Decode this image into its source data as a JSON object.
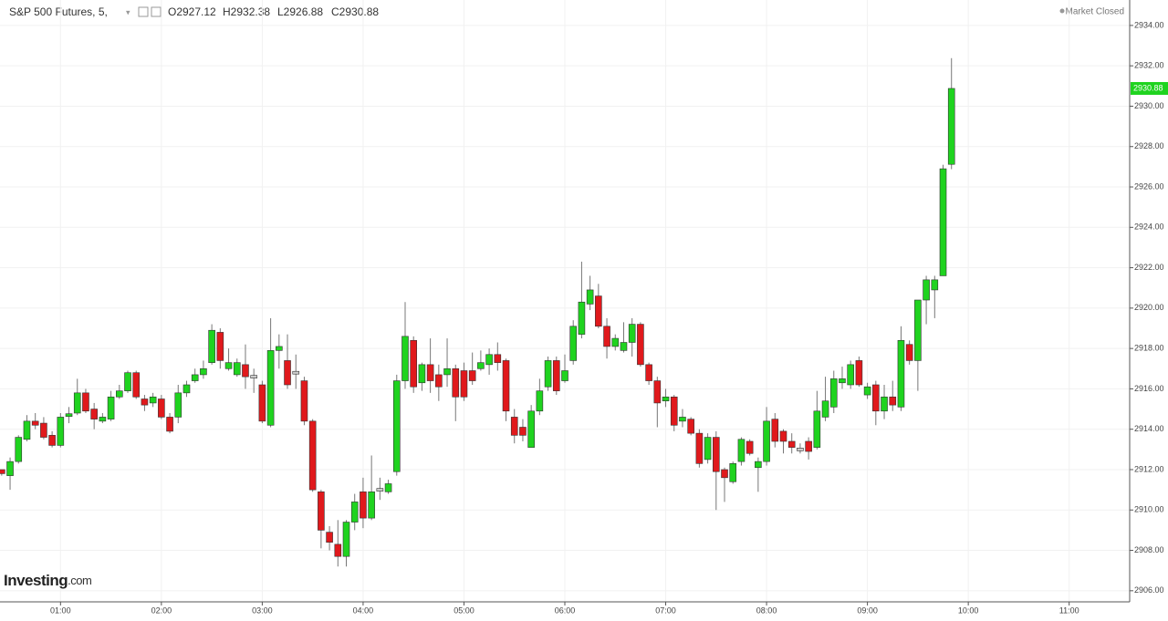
{
  "header": {
    "symbol": "S&P 500 Futures, 5,",
    "readout": [
      "O2927.12",
      "H2932.38",
      "L2926.88",
      "C2930.88"
    ],
    "status": "Market Closed",
    "brand": "Investing",
    "brand_suffix": ".com"
  },
  "chart_data": {
    "type": "candlestick",
    "up_color": "#1fd31f",
    "down_color": "#e0191c",
    "flat_color": "#cccccc",
    "grid": true,
    "xlim": [
      "00:24",
      "11:36"
    ],
    "ylim": [
      2905.45,
      2935.26
    ],
    "xticks": [
      "01:00",
      "02:00",
      "03:00",
      "04:00",
      "05:00",
      "06:00",
      "07:00",
      "08:00",
      "09:00",
      "10:00",
      "11:00"
    ],
    "yticks": [
      {
        "value": 2906,
        "label": "2906.00"
      },
      {
        "value": 2908,
        "label": "2908.00"
      },
      {
        "value": 2910,
        "label": "2910.00"
      },
      {
        "value": 2912,
        "label": "2912.00"
      },
      {
        "value": 2914,
        "label": "2914.00"
      },
      {
        "value": 2916,
        "label": "2916.00"
      },
      {
        "value": 2918,
        "label": "2918.00"
      },
      {
        "value": 2920,
        "label": "2920.00"
      },
      {
        "value": 2922,
        "label": "2922.00"
      },
      {
        "value": 2924,
        "label": "2924.00"
      },
      {
        "value": 2926,
        "label": "2926.00"
      },
      {
        "value": 2928,
        "label": "2928.00"
      },
      {
        "value": 2930,
        "label": "2930.00"
      },
      {
        "value": 2932,
        "label": "2932.00"
      },
      {
        "value": 2934,
        "label": "2934.00"
      }
    ],
    "last_price": 2930.88,
    "x": [
      "00:25",
      "00:30",
      "00:35",
      "00:40",
      "00:45",
      "00:50",
      "00:55",
      "01:00",
      "01:05",
      "01:10",
      "01:15",
      "01:20",
      "01:25",
      "01:30",
      "01:35",
      "01:40",
      "01:45",
      "01:50",
      "01:55",
      "02:00",
      "02:05",
      "02:10",
      "02:15",
      "02:20",
      "02:25",
      "02:30",
      "02:35",
      "02:40",
      "02:45",
      "02:50",
      "02:55",
      "03:00",
      "03:05",
      "03:10",
      "03:15",
      "03:20",
      "03:25",
      "03:30",
      "03:35",
      "03:40",
      "03:45",
      "03:50",
      "03:55",
      "04:00",
      "04:05",
      "04:10",
      "04:15",
      "04:20",
      "04:25",
      "04:30",
      "04:35",
      "04:40",
      "04:45",
      "04:50",
      "04:55",
      "05:00",
      "05:05",
      "05:10",
      "05:15",
      "05:20",
      "05:25",
      "05:30",
      "05:35",
      "05:40",
      "05:45",
      "05:50",
      "05:55",
      "06:00",
      "06:05",
      "06:10",
      "06:15",
      "06:20",
      "06:25",
      "06:30",
      "06:35",
      "06:40",
      "06:45",
      "06:50",
      "06:55",
      "07:00",
      "07:05",
      "07:10",
      "07:15",
      "07:20",
      "07:25",
      "07:30",
      "07:35",
      "07:40",
      "07:45",
      "07:50",
      "07:55",
      "08:00",
      "08:05",
      "08:10",
      "08:15",
      "08:20",
      "08:25",
      "08:30",
      "08:35",
      "08:40",
      "08:45",
      "08:50",
      "08:55",
      "09:00",
      "09:05",
      "09:10",
      "09:15",
      "09:20",
      "09:25",
      "09:30",
      "09:35",
      "09:40",
      "09:45",
      "09:50"
    ],
    "ohlc": [
      [
        2912.0,
        2912.0,
        2911.7,
        2911.8
      ],
      [
        2911.7,
        2912.6,
        2911.0,
        2912.4
      ],
      [
        2912.4,
        2913.7,
        2912.3,
        2913.6
      ],
      [
        2913.5,
        2914.7,
        2913.4,
        2914.4
      ],
      [
        2914.4,
        2914.8,
        2914.0,
        2914.2
      ],
      [
        2914.3,
        2914.6,
        2913.5,
        2913.6
      ],
      [
        2913.7,
        2913.9,
        2913.1,
        2913.2
      ],
      [
        2913.2,
        2914.8,
        2913.1,
        2914.6
      ],
      [
        2914.6,
        2915.1,
        2914.3,
        2914.7
      ],
      [
        2914.8,
        2916.5,
        2914.7,
        2915.8
      ],
      [
        2915.8,
        2916.0,
        2914.8,
        2914.9
      ],
      [
        2915.0,
        2915.3,
        2914.0,
        2914.5
      ],
      [
        2914.4,
        2914.8,
        2914.3,
        2914.6
      ],
      [
        2914.5,
        2915.9,
        2914.4,
        2915.6
      ],
      [
        2915.6,
        2916.2,
        2915.5,
        2915.9
      ],
      [
        2915.9,
        2916.9,
        2915.8,
        2916.8
      ],
      [
        2916.8,
        2916.9,
        2915.5,
        2915.6
      ],
      [
        2915.5,
        2915.7,
        2914.9,
        2915.2
      ],
      [
        2915.3,
        2915.8,
        2915.1,
        2915.6
      ],
      [
        2915.5,
        2915.7,
        2914.5,
        2914.6
      ],
      [
        2914.6,
        2914.8,
        2913.8,
        2913.9
      ],
      [
        2914.6,
        2916.2,
        2914.3,
        2915.8
      ],
      [
        2915.8,
        2916.4,
        2915.6,
        2916.2
      ],
      [
        2916.4,
        2917.0,
        2916.3,
        2916.7
      ],
      [
        2916.7,
        2917.4,
        2916.5,
        2917.0
      ],
      [
        2917.3,
        2919.2,
        2917.2,
        2918.9
      ],
      [
        2918.8,
        2919.0,
        2917.0,
        2917.4
      ],
      [
        2917.0,
        2918.0,
        2916.9,
        2917.3
      ],
      [
        2916.7,
        2917.5,
        2916.6,
        2917.3
      ],
      [
        2917.2,
        2918.2,
        2916.0,
        2916.6
      ],
      [
        2916.6,
        2917.0,
        2915.8,
        2916.6
      ],
      [
        2916.2,
        2916.4,
        2914.3,
        2914.4
      ],
      [
        2914.2,
        2919.5,
        2914.1,
        2917.9
      ],
      [
        2917.9,
        2918.7,
        2917.0,
        2918.1
      ],
      [
        2917.4,
        2918.7,
        2916.0,
        2916.2
      ],
      [
        2916.8,
        2917.7,
        2916.0,
        2916.8
      ],
      [
        2916.4,
        2916.6,
        2914.2,
        2914.4
      ],
      [
        2914.4,
        2914.5,
        2910.9,
        2911.0
      ],
      [
        2910.9,
        2911.0,
        2908.1,
        2909.0
      ],
      [
        2908.9,
        2909.2,
        2908.0,
        2908.4
      ],
      [
        2908.3,
        2909.5,
        2907.2,
        2907.7
      ],
      [
        2907.7,
        2909.5,
        2907.2,
        2909.4
      ],
      [
        2909.4,
        2910.8,
        2909.0,
        2910.4
      ],
      [
        2910.9,
        2911.6,
        2909.1,
        2909.6
      ],
      [
        2909.6,
        2912.7,
        2909.5,
        2910.9
      ],
      [
        2911.0,
        2911.6,
        2910.5,
        2911.0
      ],
      [
        2910.9,
        2911.5,
        2910.8,
        2911.3
      ],
      [
        2911.9,
        2916.7,
        2911.7,
        2916.4
      ],
      [
        2916.4,
        2920.3,
        2916.0,
        2918.6
      ],
      [
        2918.4,
        2918.6,
        2915.8,
        2916.1
      ],
      [
        2916.3,
        2917.3,
        2915.9,
        2917.2
      ],
      [
        2917.2,
        2918.5,
        2915.8,
        2916.4
      ],
      [
        2916.7,
        2917.2,
        2915.4,
        2916.1
      ],
      [
        2916.7,
        2918.5,
        2916.1,
        2917.0
      ],
      [
        2917.0,
        2917.2,
        2914.4,
        2915.6
      ],
      [
        2916.9,
        2917.3,
        2915.4,
        2915.6
      ],
      [
        2916.9,
        2917.8,
        2916.2,
        2916.4
      ],
      [
        2917.0,
        2917.9,
        2916.9,
        2917.3
      ],
      [
        2917.2,
        2918.0,
        2916.7,
        2917.7
      ],
      [
        2917.7,
        2918.3,
        2916.9,
        2917.3
      ],
      [
        2917.4,
        2917.5,
        2914.4,
        2914.9
      ],
      [
        2914.6,
        2915.0,
        2913.3,
        2913.7
      ],
      [
        2914.1,
        2914.5,
        2913.4,
        2913.7
      ],
      [
        2913.1,
        2915.2,
        2913.1,
        2914.9
      ],
      [
        2914.9,
        2916.5,
        2914.7,
        2915.9
      ],
      [
        2916.1,
        2917.6,
        2915.9,
        2917.4
      ],
      [
        2917.4,
        2917.6,
        2915.7,
        2915.9
      ],
      [
        2916.4,
        2917.7,
        2916.3,
        2916.9
      ],
      [
        2917.4,
        2919.4,
        2917.2,
        2919.1
      ],
      [
        2918.7,
        2922.3,
        2918.5,
        2920.3
      ],
      [
        2920.2,
        2921.6,
        2919.9,
        2920.9
      ],
      [
        2920.6,
        2921.2,
        2919.0,
        2919.1
      ],
      [
        2919.1,
        2919.5,
        2917.5,
        2918.1
      ],
      [
        2918.1,
        2918.7,
        2917.9,
        2918.5
      ],
      [
        2917.9,
        2919.3,
        2917.8,
        2918.3
      ],
      [
        2918.3,
        2919.5,
        2917.6,
        2919.2
      ],
      [
        2919.2,
        2919.3,
        2917.1,
        2917.2
      ],
      [
        2917.2,
        2917.3,
        2916.2,
        2916.4
      ],
      [
        2916.4,
        2916.6,
        2914.1,
        2915.3
      ],
      [
        2915.4,
        2916.0,
        2915.1,
        2915.6
      ],
      [
        2915.6,
        2915.7,
        2913.9,
        2914.2
      ],
      [
        2914.4,
        2915.0,
        2914.1,
        2914.6
      ],
      [
        2914.5,
        2914.6,
        2913.7,
        2913.8
      ],
      [
        2913.8,
        2914.0,
        2912.1,
        2912.3
      ],
      [
        2912.5,
        2913.8,
        2912.3,
        2913.6
      ],
      [
        2913.6,
        2913.9,
        2910.0,
        2911.9
      ],
      [
        2912.0,
        2912.1,
        2910.4,
        2911.6
      ],
      [
        2911.4,
        2912.4,
        2911.3,
        2912.3
      ],
      [
        2912.4,
        2913.6,
        2912.2,
        2913.5
      ],
      [
        2913.4,
        2913.5,
        2912.7,
        2912.8
      ],
      [
        2912.1,
        2912.6,
        2910.9,
        2912.4
      ],
      [
        2912.4,
        2915.1,
        2912.2,
        2914.4
      ],
      [
        2914.5,
        2914.8,
        2913.1,
        2913.4
      ],
      [
        2913.9,
        2914.0,
        2912.8,
        2913.4
      ],
      [
        2913.4,
        2913.8,
        2912.8,
        2913.1
      ],
      [
        2913.0,
        2913.3,
        2912.8,
        2913.0
      ],
      [
        2913.4,
        2913.6,
        2912.5,
        2912.9
      ],
      [
        2913.1,
        2915.9,
        2913.0,
        2914.9
      ],
      [
        2914.6,
        2916.6,
        2914.4,
        2915.4
      ],
      [
        2915.1,
        2916.9,
        2914.8,
        2916.5
      ],
      [
        2916.3,
        2917.1,
        2916.0,
        2916.5
      ],
      [
        2916.2,
        2917.4,
        2916.0,
        2917.2
      ],
      [
        2917.4,
        2917.6,
        2916.1,
        2916.2
      ],
      [
        2915.7,
        2916.3,
        2915.5,
        2916.1
      ],
      [
        2916.2,
        2916.4,
        2914.2,
        2914.9
      ],
      [
        2914.9,
        2916.2,
        2914.5,
        2915.6
      ],
      [
        2915.6,
        2916.4,
        2914.9,
        2915.2
      ],
      [
        2915.1,
        2919.1,
        2914.9,
        2918.4
      ],
      [
        2918.2,
        2918.4,
        2917.2,
        2917.4
      ],
      [
        2917.4,
        2920.4,
        2915.9,
        2920.4
      ],
      [
        2920.4,
        2921.6,
        2919.2,
        2921.4
      ],
      [
        2920.9,
        2921.6,
        2919.5,
        2921.4
      ],
      [
        2921.6,
        2927.1,
        2921.6,
        2926.9
      ],
      [
        2927.12,
        2932.38,
        2926.88,
        2930.88
      ]
    ]
  }
}
